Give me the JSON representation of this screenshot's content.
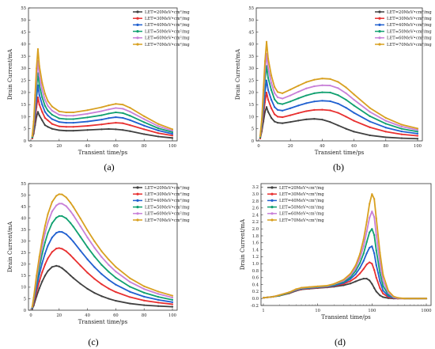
{
  "chart_data": [
    {
      "panel_label": "(a)",
      "type": "line",
      "xlabel": "Transient time/ps",
      "ylabel": "Drain Current/mA",
      "xscale": "linear",
      "xlim": [
        0,
        100
      ],
      "ylim": [
        0,
        55
      ],
      "xticks": [
        "0",
        "20",
        "40",
        "60",
        "80",
        "100"
      ],
      "yticks": [
        "0",
        "5",
        "10",
        "15",
        "20",
        "25",
        "30",
        "35",
        "40",
        "45",
        "50",
        "55"
      ],
      "legend_position": "top-right",
      "x": [
        1,
        2,
        3,
        4,
        5,
        6,
        8,
        10,
        12,
        15,
        20,
        25,
        30,
        40,
        50,
        55,
        60,
        65,
        70,
        80,
        90,
        100
      ],
      "series": [
        {
          "name": "LET=20MeV•cm²/mg",
          "color": "#404040",
          "values": [
            1,
            3,
            6.5,
            10,
            12,
            10.5,
            8.5,
            6.5,
            5.8,
            5,
            4.4,
            4.2,
            4.2,
            4.5,
            4.8,
            4.9,
            4.8,
            4.5,
            4,
            2.8,
            1.8,
            1.2
          ]
        },
        {
          "name": "LET=30MeV•cm²/mg",
          "color": "#e83030",
          "values": [
            1,
            4,
            9,
            14,
            18,
            15,
            12,
            9.5,
            8.5,
            7,
            6,
            5.8,
            5.8,
            6.2,
            6.8,
            7.2,
            7.5,
            7.3,
            6.5,
            4.8,
            3.2,
            2.2
          ]
        },
        {
          "name": "LET=40MeV•cm²/mg",
          "color": "#2060d0",
          "values": [
            1.5,
            5,
            11,
            18,
            23,
            19,
            15,
            12,
            10.5,
            9,
            7.8,
            7.5,
            7.5,
            8,
            8.8,
            9.4,
            9.8,
            9.5,
            8.6,
            6.3,
            4.3,
            2.9
          ]
        },
        {
          "name": "LET=50MeV•cm²/mg",
          "color": "#10a070",
          "values": [
            1.5,
            6,
            14,
            22,
            28,
            23,
            18,
            14.5,
            12.5,
            10.8,
            9.3,
            9,
            9,
            9.7,
            10.6,
            11.3,
            11.8,
            11.5,
            10.4,
            7.7,
            5.2,
            3.6
          ]
        },
        {
          "name": "LET=60MeV•cm²/mg",
          "color": "#c880d8",
          "values": [
            2,
            7,
            16,
            26,
            33,
            27,
            21,
            17,
            14.5,
            12.5,
            10.8,
            10.4,
            10.4,
            11.2,
            12.3,
            13,
            13.6,
            13.3,
            12.1,
            9,
            6.1,
            4.2
          ]
        },
        {
          "name": "LET=70MeV•cm²/mg",
          "color": "#d8a020",
          "values": [
            2,
            8,
            19,
            30,
            38,
            31,
            24,
            19.5,
            16.5,
            14.2,
            12.2,
            11.8,
            11.8,
            12.7,
            13.9,
            14.7,
            15.3,
            15,
            13.7,
            10.2,
            7,
            4.8
          ]
        }
      ]
    },
    {
      "panel_label": "(b)",
      "type": "line",
      "xlabel": "Transient time/ps",
      "ylabel": "Drain Current/mA",
      "xscale": "linear",
      "xlim": [
        0,
        100
      ],
      "ylim": [
        0,
        55
      ],
      "xticks": [
        "0",
        "20",
        "40",
        "60",
        "80",
        "100"
      ],
      "yticks": [
        "0",
        "5",
        "10",
        "15",
        "20",
        "25",
        "30",
        "35",
        "40",
        "45",
        "50",
        "55"
      ],
      "legend_position": "top-right",
      "x": [
        1,
        2,
        3,
        4,
        5,
        6,
        8,
        10,
        12,
        15,
        20,
        25,
        30,
        35,
        40,
        45,
        50,
        55,
        60,
        70,
        80,
        90,
        100
      ],
      "series": [
        {
          "name": "LET=20MeV•cm²/mg",
          "color": "#404040",
          "values": [
            1,
            4,
            8,
            12,
            14,
            12,
            9.5,
            8,
            7.5,
            7.3,
            7.8,
            8.4,
            8.9,
            9.1,
            8.8,
            7.8,
            6.4,
            5,
            3.8,
            2.3,
            1.5,
            1.1,
            0.9
          ]
        },
        {
          "name": "LET=30MeV•cm²/mg",
          "color": "#e83030",
          "values": [
            1,
            5,
            11,
            16,
            20,
            17,
            13.5,
            11,
            10,
            9.8,
            10.6,
            11.5,
            12.3,
            12.8,
            12.9,
            12.6,
            11.6,
            10,
            8.3,
            5.6,
            3.8,
            2.7,
            2.1
          ]
        },
        {
          "name": "LET=40MeV•cm²/mg",
          "color": "#2060d0",
          "values": [
            1.5,
            6,
            13,
            20,
            25,
            21,
            17,
            14,
            12.8,
            12.5,
            13.5,
            14.6,
            15.6,
            16.3,
            16.6,
            16.4,
            15.4,
            13.7,
            11.6,
            8,
            5.5,
            3.9,
            3
          ]
        },
        {
          "name": "LET=50MeV•cm²/mg",
          "color": "#10a070",
          "values": [
            1.5,
            7,
            16,
            25,
            31,
            26,
            21,
            17.2,
            15.6,
            15.2,
            16.3,
            17.6,
            18.8,
            19.7,
            20.1,
            20,
            18.9,
            17,
            14.6,
            10.2,
            7.1,
            5,
            3.8
          ]
        },
        {
          "name": "LET=60MeV•cm²/mg",
          "color": "#c880d8",
          "values": [
            2,
            8,
            18,
            29,
            36,
            30,
            24,
            19.8,
            18,
            17.5,
            18.8,
            20.3,
            21.7,
            22.6,
            23,
            22.9,
            21.8,
            19.7,
            17,
            12,
            8.3,
            5.9,
            4.5
          ]
        },
        {
          "name": "LET=70MeV•cm²/mg",
          "color": "#d8a020",
          "values": [
            2,
            9,
            21,
            33,
            41,
            34,
            27,
            22.3,
            20.2,
            19.7,
            21.2,
            22.8,
            24.3,
            25.3,
            25.8,
            25.6,
            24.4,
            22.1,
            19.2,
            13.6,
            9.5,
            6.7,
            5.1
          ]
        }
      ]
    },
    {
      "panel_label": "(c)",
      "type": "line",
      "xlabel": "Transient time/ps",
      "ylabel": "Drain Current/mA",
      "xscale": "linear",
      "xlim": [
        0,
        100
      ],
      "ylim": [
        0,
        55
      ],
      "xticks": [
        "0",
        "20",
        "40",
        "60",
        "80",
        "100"
      ],
      "yticks": [
        "0",
        "5",
        "10",
        "15",
        "20",
        "25",
        "30",
        "35",
        "40",
        "45",
        "50",
        "55"
      ],
      "legend_position": "top-right",
      "x": [
        1,
        2,
        4,
        6,
        8,
        10,
        12,
        15,
        18,
        20,
        22,
        25,
        28,
        30,
        35,
        40,
        45,
        50,
        55,
        60,
        70,
        80,
        90,
        100
      ],
      "series": [
        {
          "name": "LET=20MeV•cm²/mg",
          "color": "#404040",
          "values": [
            0.5,
            2,
            6,
            9.5,
            12.5,
            15,
            17,
            18.8,
            19.3,
            19,
            18.3,
            16.8,
            15.1,
            14,
            11.5,
            9.3,
            7.5,
            6.1,
            5,
            4.1,
            2.9,
            2.2,
            1.8,
            1.5
          ]
        },
        {
          "name": "LET=30MeV•cm²/mg",
          "color": "#e83030",
          "values": [
            0.8,
            3,
            8,
            12.5,
            16.5,
            19.8,
            22.5,
            25.3,
            26.8,
            27,
            26.7,
            25.6,
            23.9,
            22.6,
            19.4,
            16.3,
            13.6,
            11.3,
            9.4,
            7.9,
            5.7,
            4.2,
            3.3,
            2.6
          ]
        },
        {
          "name": "LET=40MeV•cm²/mg",
          "color": "#2060d0",
          "values": [
            1,
            3.8,
            10,
            15.5,
            20.5,
            24.6,
            28,
            31.6,
            33.6,
            34.1,
            34,
            33,
            31.2,
            29.8,
            25.9,
            22.1,
            18.7,
            15.7,
            13.2,
            11.1,
            8,
            5.9,
            4.5,
            3.5
          ]
        },
        {
          "name": "LET=50MeV•cm²/mg",
          "color": "#10a070",
          "values": [
            1.2,
            4.5,
            12,
            18.5,
            24.5,
            29.4,
            33.5,
            37.8,
            40.2,
            40.9,
            40.9,
            39.9,
            37.9,
            36.3,
            31.9,
            27.4,
            23.3,
            19.7,
            16.7,
            14.1,
            10.2,
            7.6,
            5.8,
            4.5
          ]
        },
        {
          "name": "LET=60MeV•cm²/mg",
          "color": "#c880d8",
          "values": [
            1.4,
            5,
            13.5,
            21,
            27.8,
            33.4,
            38,
            42.9,
            45.5,
            46.3,
            46.3,
            45.2,
            43,
            41.3,
            36.5,
            31.6,
            27.1,
            23.1,
            19.7,
            16.8,
            12.3,
            9.2,
            7.1,
            5.5
          ]
        },
        {
          "name": "LET=70MeV•cm²/mg",
          "color": "#d8a020",
          "values": [
            1.5,
            5.5,
            15,
            23.2,
            30.5,
            36.6,
            41.7,
            47,
            49.7,
            50.4,
            50.3,
            49,
            46.7,
            44.9,
            39.9,
            34.7,
            29.9,
            25.6,
            22,
            18.8,
            13.9,
            10.4,
            8.1,
            6.3
          ]
        }
      ]
    },
    {
      "panel_label": "(d)",
      "type": "line",
      "xlabel": "Transient time/ps",
      "ylabel": "Drain Current/mA",
      "xscale": "log",
      "xlim": [
        1,
        1000
      ],
      "ylim": [
        -0.2,
        3.3
      ],
      "xticks": [
        "1",
        "10",
        "100",
        "1000"
      ],
      "yticks": [
        "-0.2",
        "0.0",
        "0.2",
        "0.4",
        "0.6",
        "0.8",
        "1.0",
        "1.2",
        "1.4",
        "1.6",
        "1.8",
        "2.0",
        "2.2",
        "2.4",
        "2.6",
        "2.8",
        "3.0",
        "3.2"
      ],
      "legend_position": "top-left",
      "x": [
        1,
        1.5,
        2,
        3,
        4,
        5,
        7,
        10,
        15,
        20,
        30,
        40,
        50,
        60,
        70,
        80,
        90,
        100,
        110,
        120,
        140,
        160,
        200,
        250,
        300,
        400,
        500,
        700,
        1000
      ],
      "series": [
        {
          "name": "LET=20MeV•cm²/mg",
          "color": "#404040",
          "values": [
            0.02,
            0.05,
            0.08,
            0.15,
            0.22,
            0.26,
            0.28,
            0.3,
            0.32,
            0.34,
            0.38,
            0.43,
            0.49,
            0.54,
            0.57,
            0.57,
            0.52,
            0.42,
            0.3,
            0.2,
            0.09,
            0.04,
            0.01,
            0,
            0,
            0,
            0,
            0,
            0
          ]
        },
        {
          "name": "LET=30MeV•cm²/mg",
          "color": "#e83030",
          "values": [
            0.02,
            0.05,
            0.09,
            0.16,
            0.23,
            0.27,
            0.29,
            0.31,
            0.33,
            0.36,
            0.42,
            0.5,
            0.6,
            0.72,
            0.85,
            0.98,
            1.04,
            1.0,
            0.82,
            0.6,
            0.3,
            0.14,
            0.04,
            0.01,
            0,
            0,
            0,
            0,
            0
          ]
        },
        {
          "name": "LET=40MeV•cm²/mg",
          "color": "#2060d0",
          "values": [
            0.02,
            0.05,
            0.09,
            0.17,
            0.24,
            0.28,
            0.3,
            0.32,
            0.34,
            0.37,
            0.45,
            0.56,
            0.7,
            0.88,
            1.08,
            1.3,
            1.46,
            1.5,
            1.3,
            0.96,
            0.5,
            0.23,
            0.07,
            0.02,
            0.01,
            0,
            0,
            0,
            0
          ]
        },
        {
          "name": "LET=50MeV•cm²/mg",
          "color": "#10a070",
          "values": [
            0.02,
            0.05,
            0.09,
            0.17,
            0.25,
            0.29,
            0.31,
            0.33,
            0.35,
            0.39,
            0.48,
            0.61,
            0.79,
            1.02,
            1.29,
            1.62,
            1.9,
            2.0,
            1.82,
            1.38,
            0.74,
            0.36,
            0.11,
            0.03,
            0.01,
            0,
            0,
            0,
            0
          ]
        },
        {
          "name": "LET=60MeV•cm²/mg",
          "color": "#c880d8",
          "values": [
            0.02,
            0.05,
            0.1,
            0.18,
            0.26,
            0.3,
            0.32,
            0.34,
            0.36,
            0.41,
            0.51,
            0.66,
            0.87,
            1.16,
            1.5,
            1.92,
            2.32,
            2.5,
            2.34,
            1.83,
            1.02,
            0.51,
            0.16,
            0.04,
            0.01,
            0,
            0,
            0,
            0
          ]
        },
        {
          "name": "LET=70MeV•cm²/mg",
          "color": "#d8a020",
          "values": [
            0.02,
            0.05,
            0.1,
            0.18,
            0.27,
            0.31,
            0.33,
            0.35,
            0.37,
            0.42,
            0.54,
            0.71,
            0.95,
            1.28,
            1.7,
            2.2,
            2.72,
            3.0,
            2.86,
            2.3,
            1.32,
            0.68,
            0.22,
            0.06,
            0.02,
            0,
            0,
            0,
            0
          ]
        }
      ]
    }
  ]
}
